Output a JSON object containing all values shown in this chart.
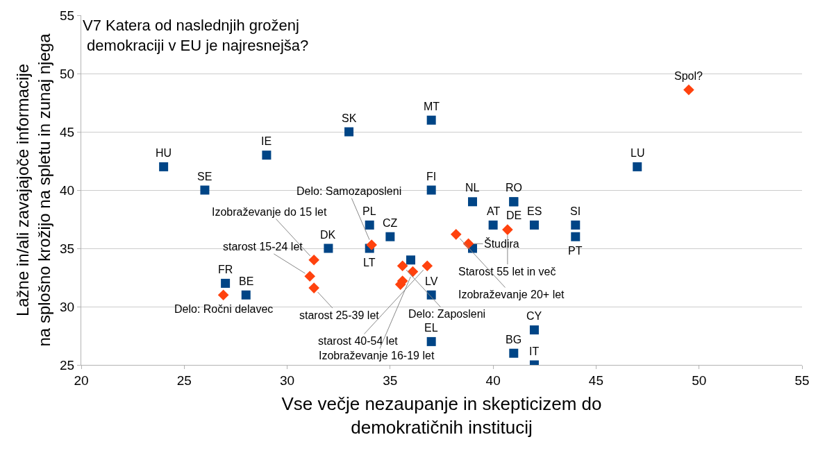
{
  "chart_data": {
    "type": "scatter",
    "title": "V7 Katera od naslednjih groženj\n demokraciji v EU je najresnejša?",
    "xlabel": "Vse večje nezaupanje in skepticizem do\ndemokratičnih institucij",
    "ylabel": "Lažne in/ali zavajajoče informacije\nna splošno krožijo na spletu in zunaj njega",
    "xlim": [
      20,
      55
    ],
    "xticks": [
      20,
      25,
      30,
      35,
      40,
      45,
      50,
      55
    ],
    "ylim": [
      25,
      55
    ],
    "yticks": [
      25,
      30,
      35,
      40,
      45,
      50,
      55
    ],
    "grid": "y",
    "series": [
      {
        "color": "#004586",
        "marker": "square",
        "x": [
          24,
          26,
          29,
          33,
          37,
          37,
          39,
          41,
          41,
          40,
          42,
          44,
          44,
          47,
          34,
          35,
          32,
          34,
          27,
          28,
          37,
          37,
          42,
          41,
          42,
          39,
          36
        ],
        "values": [
          42,
          40,
          43,
          45,
          46,
          40,
          39,
          39,
          39,
          37,
          37,
          37,
          36,
          42,
          37,
          36,
          35,
          35,
          32,
          31,
          31,
          27,
          28,
          26,
          25,
          35,
          34
        ]
      },
      {
        "color": "#ff420e",
        "marker": "diamond",
        "x": [
          49.5,
          26.9,
          40.7,
          38.2,
          38.8,
          34.1,
          31.3,
          31.1,
          31.3,
          35.6,
          36.8,
          36.1,
          35.6,
          35.5
        ],
        "values": [
          48.6,
          31,
          36.6,
          36.2,
          35.4,
          35.3,
          34,
          32.6,
          31.6,
          33.5,
          33.5,
          33,
          32.2,
          31.9
        ]
      }
    ],
    "annotations": [
      {
        "text": "HU",
        "x": 24,
        "y": 42
      },
      {
        "text": "SE",
        "x": 26,
        "y": 40
      },
      {
        "text": "IE",
        "x": 29,
        "y": 43
      },
      {
        "text": "SK",
        "x": 33,
        "y": 45
      },
      {
        "text": "MT",
        "x": 37,
        "y": 46
      },
      {
        "text": "FI",
        "x": 37,
        "y": 40
      },
      {
        "text": "NL",
        "x": 39,
        "y": 39
      },
      {
        "text": "RO",
        "x": 41,
        "y": 39
      },
      {
        "text": "DE",
        "x": 41,
        "y": 39
      },
      {
        "text": "AT",
        "x": 40,
        "y": 37
      },
      {
        "text": "ES",
        "x": 42,
        "y": 37
      },
      {
        "text": "SI",
        "x": 44,
        "y": 37
      },
      {
        "text": "PT",
        "x": 44,
        "y": 36
      },
      {
        "text": "LU",
        "x": 47,
        "y": 42
      },
      {
        "text": "PL",
        "x": 34,
        "y": 37
      },
      {
        "text": "CZ",
        "x": 35,
        "y": 36
      },
      {
        "text": "DK",
        "x": 32,
        "y": 35
      },
      {
        "text": "LT",
        "x": 34,
        "y": 35
      },
      {
        "text": "FR",
        "x": 27,
        "y": 32
      },
      {
        "text": "BE",
        "x": 28,
        "y": 31
      },
      {
        "text": "LV",
        "x": 37,
        "y": 31
      },
      {
        "text": "EL",
        "x": 37,
        "y": 27
      },
      {
        "text": "CY",
        "x": 42,
        "y": 28
      },
      {
        "text": "BG",
        "x": 41,
        "y": 26
      },
      {
        "text": "IT",
        "x": 42,
        "y": 25
      },
      {
        "text": "Spol?",
        "x": 49.5,
        "y": 48.6
      },
      {
        "text": "Delo: Ročni delavec",
        "x": 26.9,
        "y": 31
      },
      {
        "text": "Starost 55 let in več",
        "x": 40.7,
        "y": 36.6
      },
      {
        "text": "Izobraževanje 20+ let",
        "x": 38.2,
        "y": 36.2
      },
      {
        "text": "Študira",
        "x": 38.8,
        "y": 35.4
      },
      {
        "text": "Delo: Samozaposleni",
        "x": 34.1,
        "y": 35.3
      },
      {
        "text": "Izobraževanje do 15 let",
        "x": 31.3,
        "y": 34
      },
      {
        "text": "starost 15-24 let",
        "x": 31.1,
        "y": 32.6
      },
      {
        "text": "starost 25-39 let",
        "x": 31.3,
        "y": 31.6
      },
      {
        "text": "Delo: Zaposleni",
        "x": 35.6,
        "y": 33.5
      },
      {
        "text": "starost 40-54 let",
        "x": 36.8,
        "y": 33.5
      },
      {
        "text": "Izobraževanje 16-19 let",
        "x": 36.1,
        "y": 33
      }
    ]
  }
}
